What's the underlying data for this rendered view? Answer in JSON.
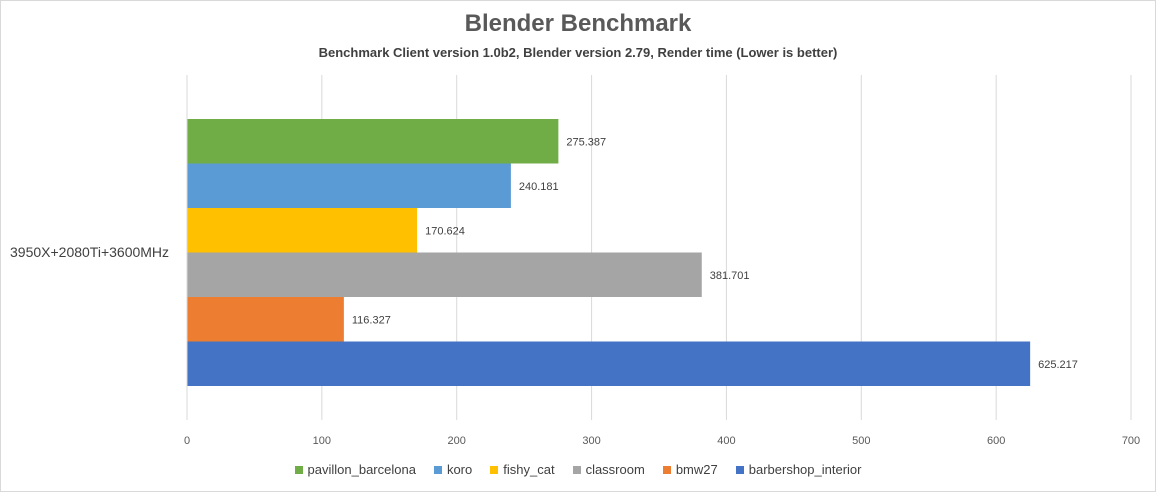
{
  "chart_data": {
    "type": "bar",
    "orientation": "horizontal",
    "title": "Blender Benchmark",
    "subtitle": "Benchmark Client version 1.0b2, Blender version 2.79, Render time (Lower is better)",
    "categories": [
      "3950X+2080Ti+3600MHz"
    ],
    "xlim": [
      0,
      700
    ],
    "xticks": [
      "0",
      "100",
      "200",
      "300",
      "400",
      "500",
      "600",
      "700"
    ],
    "grid": true,
    "legend_position": "bottom",
    "series": [
      {
        "name": "pavillon_barcelona",
        "values": [
          275.387
        ],
        "label": "275.387",
        "color": "#70ad47"
      },
      {
        "name": "koro",
        "values": [
          240.181
        ],
        "label": "240.181",
        "color": "#5b9bd5"
      },
      {
        "name": "fishy_cat",
        "values": [
          170.624
        ],
        "label": "170.624",
        "color": "#ffc000"
      },
      {
        "name": "classroom",
        "values": [
          381.701
        ],
        "label": "381.701",
        "color": "#a5a5a5"
      },
      {
        "name": "bmw27",
        "values": [
          116.327
        ],
        "label": "116.327",
        "color": "#ed7d31"
      },
      {
        "name": "barbershop_interior",
        "values": [
          625.217
        ],
        "label": "625.217",
        "color": "#4472c4"
      }
    ]
  }
}
